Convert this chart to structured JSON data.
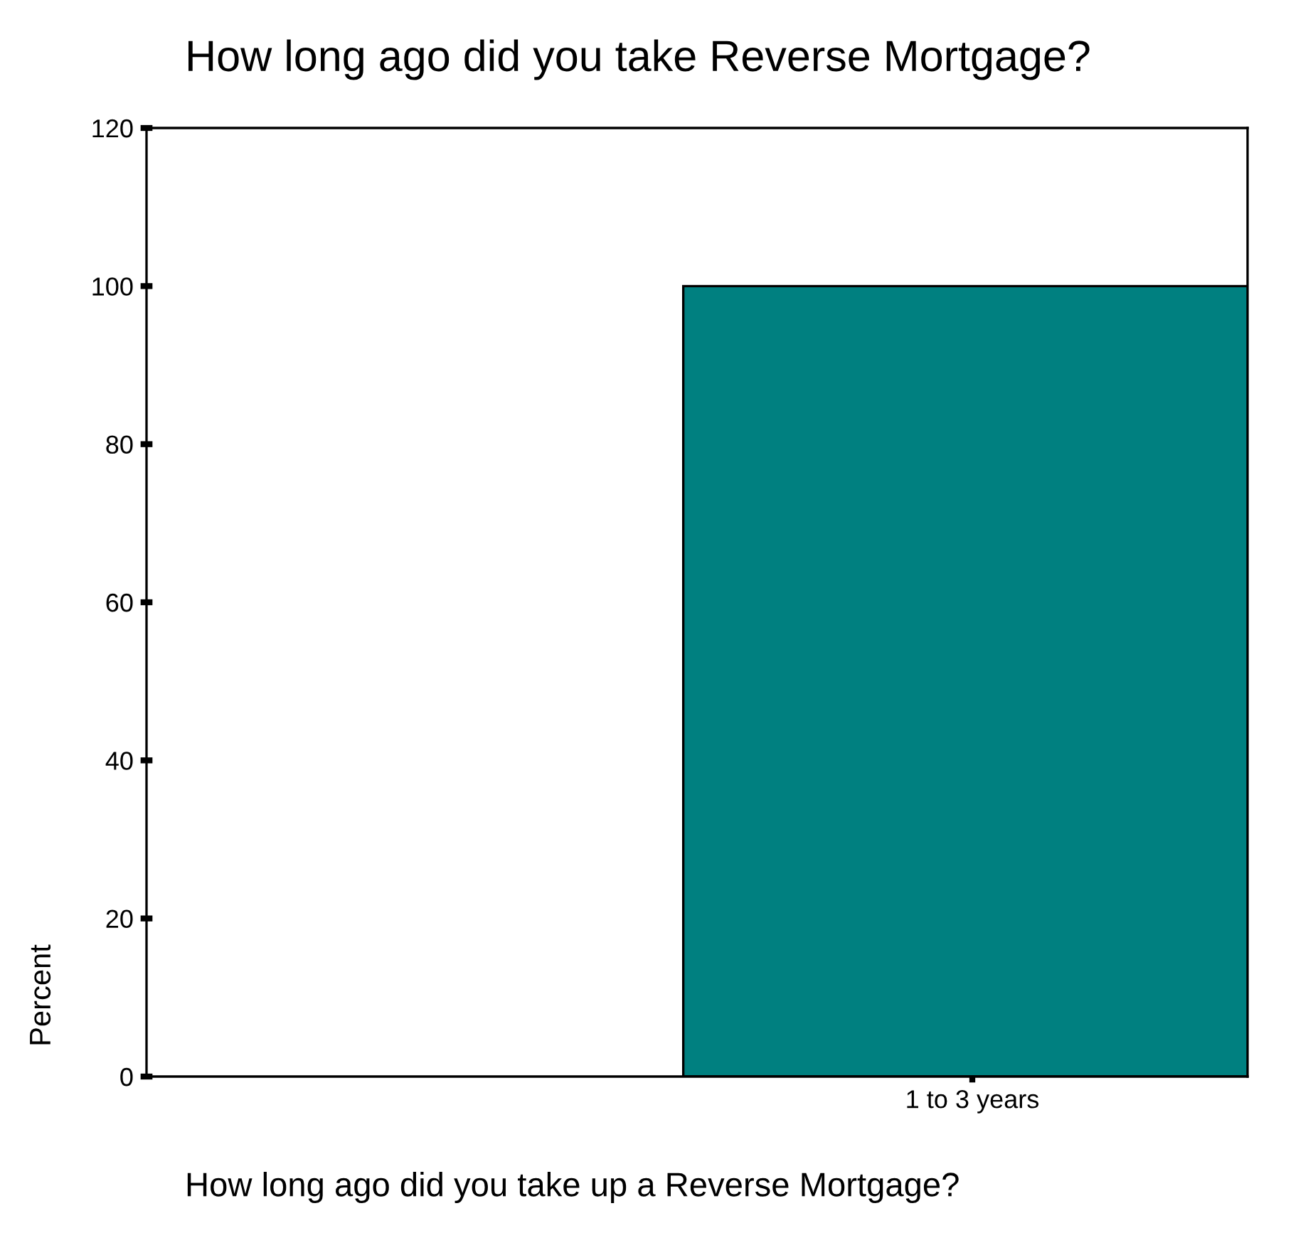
{
  "chart_data": {
    "type": "bar",
    "title": "How long ago did you take Reverse Mortgage?",
    "xlabel": "How long ago did you take up a Reverse Mortgage?",
    "ylabel": "Percent",
    "categories": [
      "1 to 3 years"
    ],
    "values": [
      100
    ],
    "color": "#008080",
    "ylim": [
      0,
      120
    ],
    "yticks": [
      0,
      20,
      40,
      60,
      80,
      100,
      120
    ],
    "grid": false,
    "legend": false
  }
}
